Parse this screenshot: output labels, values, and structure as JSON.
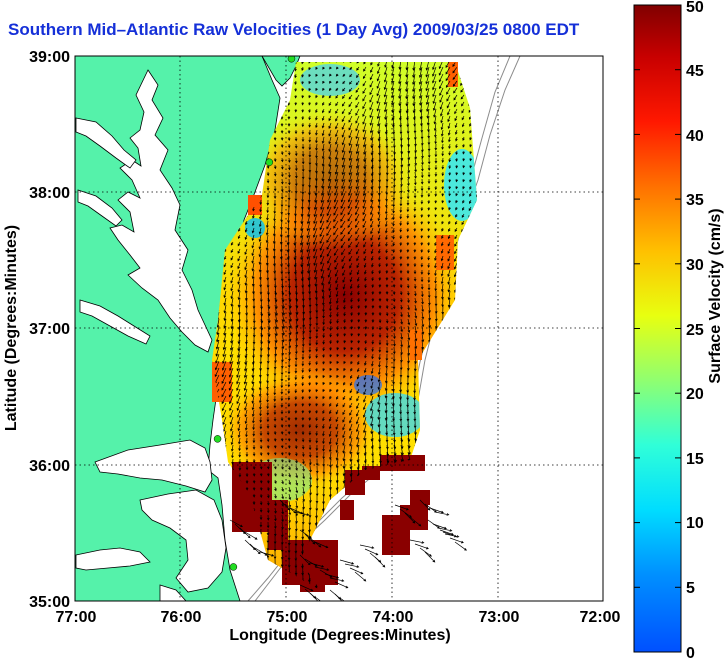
{
  "title": "Southern Mid–Atlantic Raw Velocities (1 Day Avg) 2009/03/25 0800 EDT",
  "map": {
    "x_axis_label": "Longitude (Degrees:Minutes)",
    "y_axis_label": "Latitude (Degrees:Minutes)",
    "lon_range": [
      -77,
      -72
    ],
    "lat_range": [
      35,
      39
    ],
    "x_ticks": [
      "77:00",
      "76:00",
      "75:00",
      "74:00",
      "73:00",
      "72:00"
    ],
    "y_ticks": [
      "39:00",
      "38:00",
      "37:00",
      "36:00",
      "35:00"
    ],
    "grid": "dotted"
  },
  "colorbar": {
    "label": "Surface Velocity (cm/s)",
    "range": [
      0,
      50
    ],
    "ticks": [
      "0",
      "5",
      "10",
      "15",
      "20",
      "25",
      "30",
      "35",
      "40",
      "45",
      "50"
    ],
    "colormap": "jet"
  },
  "colors": {
    "land": "#55f2aa",
    "water": "#ffffff",
    "coastline": "#000000",
    "bathymetry": "#8c8c8c",
    "station_marker": "#22dd22",
    "title": "#1530d8"
  },
  "stations": [
    {
      "lon": -74.95,
      "lat": 38.98
    },
    {
      "lon": -75.16,
      "lat": 38.22
    },
    {
      "lon": -75.65,
      "lat": 36.19
    },
    {
      "lon": -75.5,
      "lat": 35.25
    }
  ]
}
